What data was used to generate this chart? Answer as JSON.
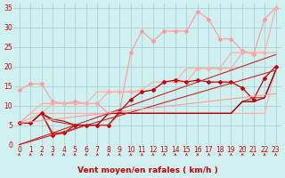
{
  "title": "",
  "xlabel": "Vent moyen/en rafales ( km/h )",
  "bg_color": "#cff0ef",
  "grid_color": "#a8d4d4",
  "xlim": [
    -0.5,
    23.5
  ],
  "ylim": [
    0,
    36
  ],
  "yticks": [
    0,
    5,
    10,
    15,
    20,
    25,
    30,
    35
  ],
  "xticks": [
    0,
    1,
    2,
    3,
    4,
    5,
    6,
    7,
    8,
    9,
    10,
    11,
    12,
    13,
    14,
    15,
    16,
    17,
    18,
    19,
    20,
    21,
    22,
    23
  ],
  "series": [
    {
      "x": [
        0,
        1,
        2,
        3,
        4,
        5,
        6,
        7,
        8,
        9,
        10,
        11,
        12,
        13,
        14,
        15,
        16,
        17,
        18,
        19,
        20,
        21,
        22,
        23
      ],
      "y": [
        14,
        15.5,
        15.5,
        11,
        10.5,
        11,
        10.5,
        10.5,
        8,
        8.5,
        23.5,
        29,
        26.5,
        29,
        29,
        29,
        34,
        32,
        27,
        27,
        24,
        23,
        32,
        35
      ],
      "color": "#ff9999",
      "lw": 0.8,
      "marker": "D",
      "ms": 2.0
    },
    {
      "x": [
        0,
        1,
        2,
        3,
        4,
        5,
        6,
        7,
        8,
        9,
        10,
        11,
        12,
        13,
        14,
        15,
        16,
        17,
        18,
        19,
        20,
        21,
        22,
        23
      ],
      "y": [
        5.5,
        8,
        8,
        8,
        8,
        8,
        8,
        8,
        8,
        8,
        8,
        8,
        8,
        8,
        8,
        8,
        8,
        8,
        8,
        8,
        8,
        8,
        8,
        19.5
      ],
      "color": "#ffaaaa",
      "lw": 0.8,
      "marker": null,
      "ms": 0
    },
    {
      "x": [
        0,
        1,
        2,
        3,
        4,
        5,
        6,
        7,
        8,
        9,
        10,
        11,
        12,
        13,
        14,
        15,
        16,
        17,
        18,
        19,
        20,
        21,
        22,
        23
      ],
      "y": [
        5.5,
        8,
        10.5,
        10.5,
        10.5,
        10.5,
        10.5,
        13.5,
        13.5,
        13.5,
        13.5,
        14,
        16,
        16,
        16,
        19.5,
        19.5,
        19.5,
        19.5,
        23.5,
        23.5,
        23.5,
        23.5,
        23.5
      ],
      "color": "#ffaaaa",
      "lw": 0.8,
      "marker": null,
      "ms": 0
    },
    {
      "x": [
        0,
        2,
        3,
        4,
        5,
        6,
        7,
        8,
        9,
        10,
        11,
        12,
        13,
        14,
        15,
        16,
        17,
        18,
        19,
        20,
        21,
        22,
        23
      ],
      "y": [
        5.5,
        8,
        10.5,
        10.5,
        10.5,
        10.5,
        10.5,
        13.5,
        13.5,
        13.5,
        13.5,
        14,
        16,
        16,
        16,
        19.5,
        19.5,
        19.5,
        19.5,
        23.5,
        23.5,
        23.5,
        35
      ],
      "color": "#ffaaaa",
      "lw": 0.8,
      "marker": "D",
      "ms": 2.0
    },
    {
      "x": [
        0,
        1,
        2,
        3,
        4,
        5,
        6,
        7,
        8,
        9,
        10,
        11,
        12,
        13,
        14,
        15,
        16,
        17,
        18,
        19,
        20,
        21,
        22,
        23
      ],
      "y": [
        5.5,
        5.5,
        8,
        2.5,
        3,
        5,
        5,
        5,
        5,
        8.5,
        11.5,
        13.5,
        14,
        16,
        16.5,
        16,
        16.5,
        16,
        16,
        16,
        14.5,
        11.5,
        17,
        20
      ],
      "color": "#cc0000",
      "lw": 0.9,
      "marker": "D",
      "ms": 2.0
    },
    {
      "x": [
        0,
        1,
        2,
        3,
        4,
        5,
        6,
        7,
        8,
        9,
        10,
        11,
        12,
        13,
        14,
        15,
        16,
        17,
        18,
        19,
        20,
        21,
        22,
        23
      ],
      "y": [
        5.5,
        5.5,
        8,
        3,
        3,
        4,
        5,
        5,
        5,
        8,
        8,
        8,
        8,
        8,
        8,
        8,
        8,
        8,
        8,
        8,
        11,
        12,
        12,
        19
      ],
      "color": "#dd2222",
      "lw": 0.8,
      "marker": null,
      "ms": 0
    },
    {
      "x": [
        0,
        1,
        2,
        3,
        4,
        5,
        6,
        7,
        8,
        9,
        10,
        11,
        12,
        13,
        14,
        15,
        16,
        17,
        18,
        19,
        20,
        21,
        22,
        23
      ],
      "y": [
        5.5,
        5.5,
        8,
        6,
        5.5,
        5,
        5,
        5,
        8,
        8,
        8,
        8,
        8,
        8,
        8,
        8,
        8,
        8,
        8,
        8,
        11,
        11,
        12,
        19
      ],
      "color": "#cc2222",
      "lw": 0.8,
      "marker": null,
      "ms": 0
    },
    {
      "x": [
        0,
        1,
        2,
        3,
        4,
        5,
        6,
        7,
        8,
        9,
        10,
        11,
        12,
        13,
        14,
        15,
        16,
        17,
        18,
        19,
        20,
        21,
        22,
        23
      ],
      "y": [
        5.5,
        5.5,
        8,
        6.5,
        6,
        5,
        5,
        5,
        8,
        8,
        8,
        8,
        8,
        8,
        8,
        8,
        8,
        8,
        8,
        8,
        11,
        11,
        12,
        19
      ],
      "color": "#aa0000",
      "lw": 0.8,
      "marker": null,
      "ms": 0
    },
    {
      "x": [
        0,
        23
      ],
      "y": [
        0,
        23
      ],
      "color": "#cc2222",
      "lw": 0.8,
      "marker": null,
      "ms": 0
    },
    {
      "x": [
        0,
        23
      ],
      "y": [
        0,
        19
      ],
      "color": "#cc2222",
      "lw": 0.8,
      "marker": null,
      "ms": 0
    },
    {
      "x": [
        0,
        23
      ],
      "y": [
        5.5,
        13
      ],
      "color": "#ff9999",
      "lw": 0.8,
      "marker": null,
      "ms": 0
    }
  ],
  "arrow_color": "#cc0000",
  "xlabel_color": "#cc0000",
  "xlabel_fontsize": 6.5,
  "tick_label_color": "#cc0000",
  "tick_label_fontsize": 5.5
}
